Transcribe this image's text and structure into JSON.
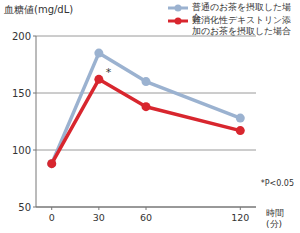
{
  "chart_data": {
    "type": "line",
    "y_label": "血糖値(mg/dL)",
    "x_label": "時間(分)",
    "x": [
      0,
      30,
      60,
      120
    ],
    "series": [
      {
        "name": "普通のお茶を摂取した場合",
        "color": "#9bb2d0",
        "marker": "circle",
        "values": [
          88,
          185,
          160,
          128
        ]
      },
      {
        "name": "難消化性デキストリン添加のお茶を摂取した場合",
        "color": "#d8262e",
        "marker": "circle",
        "values": [
          88,
          162,
          138,
          117
        ]
      }
    ],
    "annotations": [
      "*",
      "*P<0.05"
    ],
    "xlim": [
      -10,
      130
    ],
    "xticks": [
      0,
      30,
      60,
      120
    ],
    "ylim": [
      50,
      200
    ],
    "yticks": [
      50,
      100,
      150,
      200
    ],
    "grid": true,
    "legend": "upper right"
  }
}
